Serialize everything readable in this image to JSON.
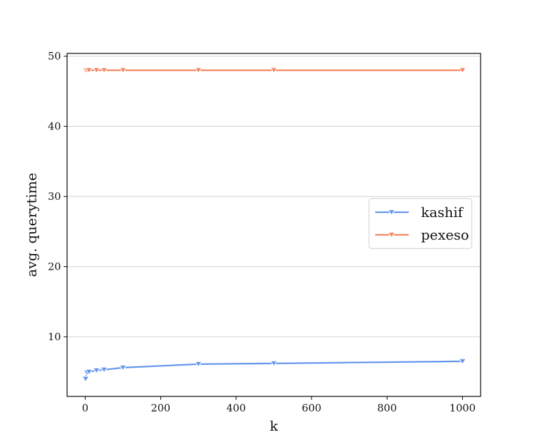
{
  "chart_data": {
    "type": "line",
    "xlabel": "k",
    "ylabel": "avg. querytime",
    "xlim": [
      -48,
      1048
    ],
    "ylim": [
      1.5,
      50.4
    ],
    "xticks": [
      0,
      200,
      400,
      600,
      800,
      1000
    ],
    "yticks": [
      10,
      20,
      30,
      40,
      50
    ],
    "grid": "horizontal",
    "legend_position": "center-right",
    "marker": "triangle-down",
    "series": [
      {
        "name": "kashif",
        "color": "#6495ED",
        "x": [
          1,
          5,
          10,
          30,
          50,
          100,
          300,
          500,
          1000
        ],
        "y": [
          4.0,
          4.9,
          5.0,
          5.2,
          5.3,
          5.6,
          6.1,
          6.2,
          6.5
        ]
      },
      {
        "name": "pexeso",
        "color": "#F4845F",
        "x": [
          1,
          5,
          10,
          30,
          50,
          100,
          300,
          500,
          1000
        ],
        "y": [
          48,
          48,
          48,
          48,
          48,
          48,
          48,
          48,
          48
        ]
      }
    ]
  }
}
